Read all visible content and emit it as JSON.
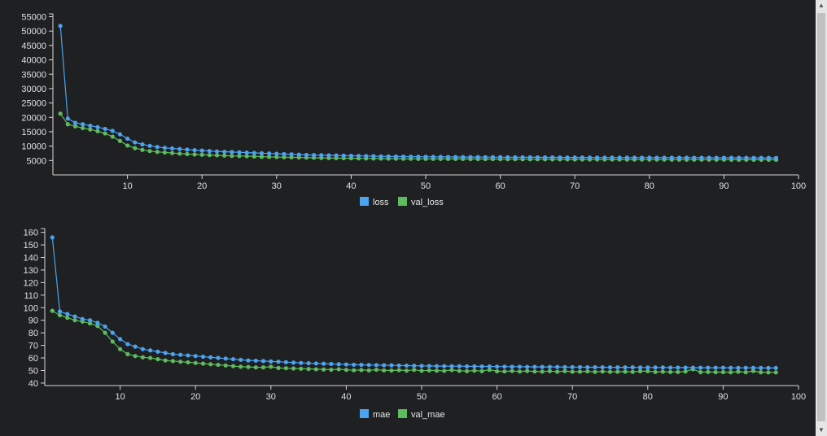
{
  "chart_data": [
    {
      "type": "line",
      "x": [
        1,
        2,
        3,
        4,
        5,
        6,
        7,
        8,
        9,
        10,
        11,
        12,
        13,
        14,
        15,
        16,
        17,
        18,
        19,
        20,
        21,
        22,
        23,
        24,
        25,
        26,
        27,
        28,
        29,
        30,
        31,
        32,
        33,
        34,
        35,
        36,
        37,
        38,
        39,
        40,
        41,
        42,
        43,
        44,
        45,
        46,
        47,
        48,
        49,
        50,
        51,
        52,
        53,
        54,
        55,
        56,
        57,
        58,
        59,
        60,
        61,
        62,
        63,
        64,
        65,
        66,
        67,
        68,
        69,
        70,
        71,
        72,
        73,
        74,
        75,
        76,
        77,
        78,
        79,
        80,
        81,
        82,
        83,
        84,
        85,
        86,
        87,
        88,
        89,
        90,
        91,
        92,
        93,
        94,
        95,
        96,
        97
      ],
      "xticks": [
        10,
        20,
        30,
        40,
        50,
        60,
        70,
        80,
        90,
        100
      ],
      "yticks": [
        5000,
        10000,
        15000,
        20000,
        25000,
        30000,
        35000,
        40000,
        45000,
        50000,
        55000
      ],
      "xlim": [
        0,
        100
      ],
      "ylim": [
        0,
        56000
      ],
      "legend_position": "bottom-center",
      "series": [
        {
          "name": "loss",
          "color": "#4ba3f2",
          "values": [
            51800,
            19600,
            18100,
            17600,
            17100,
            16600,
            16000,
            15300,
            14100,
            12600,
            11300,
            10600,
            10100,
            9700,
            9400,
            9200,
            9000,
            8800,
            8600,
            8450,
            8300,
            8150,
            8050,
            7950,
            7850,
            7750,
            7650,
            7550,
            7450,
            7350,
            7250,
            7150,
            7050,
            6950,
            6900,
            6850,
            6800,
            6750,
            6700,
            6650,
            6600,
            6550,
            6500,
            6450,
            6400,
            6380,
            6360,
            6340,
            6320,
            6300,
            6280,
            6260,
            6240,
            6220,
            6200,
            6190,
            6180,
            6170,
            6160,
            6150,
            6140,
            6130,
            6120,
            6110,
            6100,
            6090,
            6080,
            6070,
            6060,
            6050,
            6040,
            6030,
            6020,
            6010,
            6000,
            6000,
            6000,
            5990,
            5990,
            5990,
            5980,
            5980,
            5980,
            5970,
            5970,
            5960,
            5960,
            5950,
            5950,
            5940,
            5940,
            5930,
            5930,
            5920,
            5920,
            5910,
            5900
          ]
        },
        {
          "name": "val_loss",
          "color": "#5ebb5e",
          "values": [
            21300,
            17600,
            16900,
            16300,
            15800,
            15200,
            14400,
            13300,
            11800,
            10200,
            9300,
            8700,
            8300,
            8000,
            7800,
            7600,
            7400,
            7250,
            7100,
            7000,
            6900,
            6800,
            6700,
            6600,
            6550,
            6500,
            6400,
            6300,
            6250,
            6200,
            6150,
            6100,
            6050,
            6000,
            5950,
            5900,
            5870,
            5840,
            5810,
            5780,
            5750,
            5720,
            5700,
            5680,
            5660,
            5640,
            5620,
            5600,
            5590,
            5580,
            5570,
            5560,
            5550,
            5540,
            5530,
            5520,
            5510,
            5500,
            5490,
            5480,
            5470,
            5460,
            5450,
            5440,
            5430,
            5420,
            5410,
            5400,
            5390,
            5380,
            5370,
            5370,
            5360,
            5360,
            5350,
            5350,
            5340,
            5340,
            5330,
            5330,
            5320,
            5320,
            5310,
            5310,
            5300,
            5300,
            5290,
            5290,
            5280,
            5280,
            5270,
            5270,
            5260,
            5260,
            5250,
            5250,
            5240
          ]
        }
      ]
    },
    {
      "type": "line",
      "x": [
        1,
        2,
        3,
        4,
        5,
        6,
        7,
        8,
        9,
        10,
        11,
        12,
        13,
        14,
        15,
        16,
        17,
        18,
        19,
        20,
        21,
        22,
        23,
        24,
        25,
        26,
        27,
        28,
        29,
        30,
        31,
        32,
        33,
        34,
        35,
        36,
        37,
        38,
        39,
        40,
        41,
        42,
        43,
        44,
        45,
        46,
        47,
        48,
        49,
        50,
        51,
        52,
        53,
        54,
        55,
        56,
        57,
        58,
        59,
        60,
        61,
        62,
        63,
        64,
        65,
        66,
        67,
        68,
        69,
        70,
        71,
        72,
        73,
        74,
        75,
        76,
        77,
        78,
        79,
        80,
        81,
        82,
        83,
        84,
        85,
        86,
        87,
        88,
        89,
        90,
        91,
        92,
        93,
        94,
        95,
        96,
        97
      ],
      "xticks": [
        10,
        20,
        30,
        40,
        50,
        60,
        70,
        80,
        90,
        100
      ],
      "yticks": [
        40,
        50,
        60,
        70,
        80,
        90,
        100,
        110,
        120,
        130,
        140,
        150,
        160
      ],
      "xlim": [
        0,
        100
      ],
      "ylim": [
        38,
        163
      ],
      "legend_position": "bottom-center",
      "series": [
        {
          "name": "mae",
          "color": "#4ba3f2",
          "values": [
            156,
            97,
            95,
            93,
            91,
            90,
            88,
            85,
            80,
            75,
            71,
            69,
            67,
            66,
            65,
            64,
            63,
            62.5,
            62,
            61.5,
            61,
            60.5,
            60,
            59.5,
            59,
            58.5,
            58,
            57.8,
            57.5,
            57.2,
            57,
            56.6,
            56.3,
            56,
            55.8,
            55.6,
            55.4,
            55.2,
            55,
            54.8,
            54.6,
            54.5,
            54.4,
            54.3,
            54.2,
            54.1,
            54,
            53.9,
            53.8,
            53.7,
            53.6,
            53.5,
            53.5,
            53.4,
            53.4,
            53.3,
            53.3,
            53.2,
            53.2,
            53.1,
            53.1,
            53,
            53,
            52.9,
            52.9,
            52.8,
            52.8,
            52.8,
            52.7,
            52.7,
            52.7,
            52.6,
            52.6,
            52.6,
            52.5,
            52.5,
            52.5,
            52.5,
            52.4,
            52.4,
            52.4,
            52.4,
            52.3,
            52.3,
            52.3,
            52.3,
            52.2,
            52.2,
            52.2,
            52.2,
            52.1,
            52.1,
            52.1,
            52.1,
            52,
            52,
            52
          ]
        },
        {
          "name": "val_mae",
          "color": "#5ebb5e",
          "values": [
            97.5,
            94,
            92,
            90,
            89,
            87.5,
            85.5,
            80,
            73,
            67,
            63,
            61.5,
            60.5,
            60,
            59,
            58,
            57.5,
            57,
            56.5,
            56,
            55.5,
            55,
            54.5,
            54,
            53.5,
            53,
            52.8,
            52.5,
            52.5,
            53,
            52,
            51.8,
            51.6,
            51.4,
            51.2,
            51,
            50.8,
            50.6,
            51,
            50.5,
            50.2,
            50.4,
            50.1,
            50.6,
            50.1,
            50,
            50.3,
            49.9,
            50.5,
            49.8,
            50.1,
            49.9,
            49.7,
            50.4,
            49.7,
            49.5,
            49.9,
            49.5,
            50.5,
            49.4,
            49.3,
            49.6,
            49.2,
            49.6,
            49.2,
            49.1,
            49.5,
            49,
            49.5,
            49,
            49.1,
            49.3,
            48.9,
            49.2,
            48.9,
            49,
            49.1,
            48.9,
            49.4,
            49.5,
            48.8,
            49,
            48.8,
            48.8,
            49.2,
            51,
            48.7,
            48.8,
            48.7,
            48.7,
            48.6,
            49,
            48.6,
            49.6,
            48.6,
            48.5,
            48.5
          ]
        }
      ]
    }
  ]
}
